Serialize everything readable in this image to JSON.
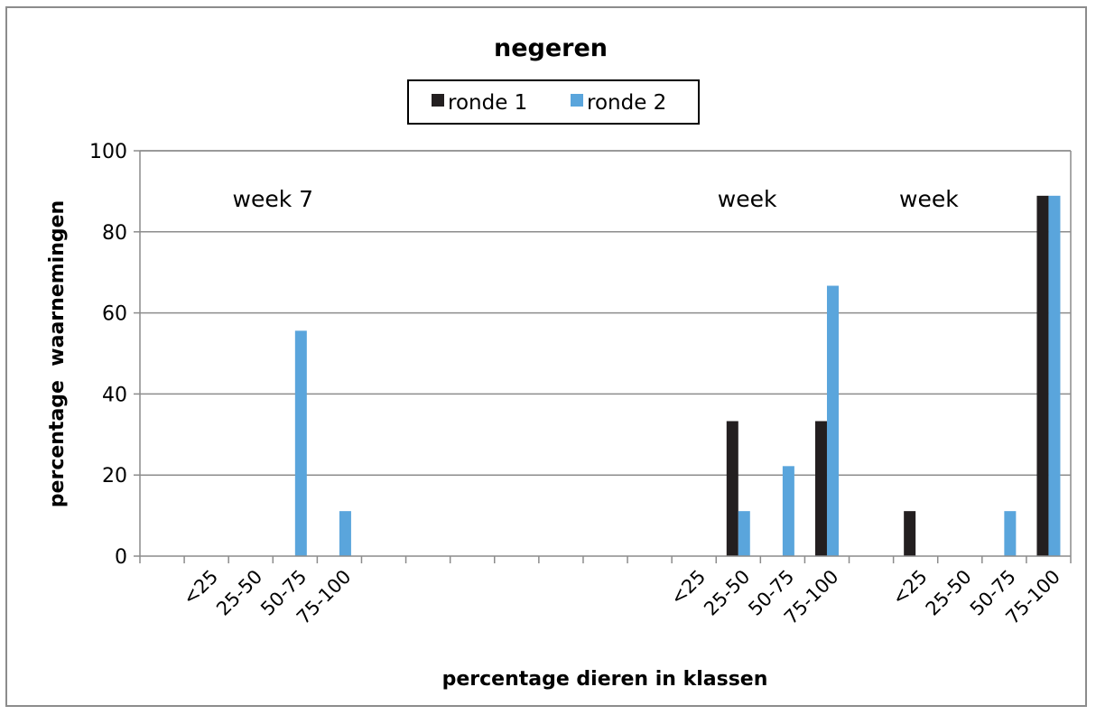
{
  "chart_data": {
    "type": "bar",
    "title": "negeren",
    "xlabel": "percentage dieren in klassen",
    "ylabel": "percentage  waarnemingen",
    "ylim": [
      0,
      100
    ],
    "yticks": [
      0,
      20,
      40,
      60,
      80,
      100
    ],
    "grid": true,
    "legend_position": "top-center",
    "categories": [
      "",
      "<25",
      "25-50",
      "50-75",
      "75-100",
      "",
      "",
      "",
      "",
      "",
      "",
      "",
      "<25",
      "25-50",
      "50-75",
      "75-100",
      "",
      "<25",
      "25-50",
      "50-75",
      "75-100"
    ],
    "series": [
      {
        "name": "ronde 1",
        "color": "#231f20",
        "values": [
          null,
          null,
          null,
          null,
          null,
          null,
          null,
          null,
          null,
          null,
          null,
          null,
          null,
          33.3,
          null,
          33.3,
          null,
          11.1,
          null,
          null,
          88.9
        ]
      },
      {
        "name": "ronde 2",
        "color": "#5aa5dc",
        "values": [
          null,
          null,
          null,
          55.6,
          11.1,
          null,
          null,
          null,
          null,
          null,
          null,
          null,
          null,
          11.1,
          22.2,
          66.7,
          null,
          null,
          null,
          11.1,
          88.9
        ]
      }
    ],
    "annotations": [
      {
        "text": "week 7",
        "category_index": 3
      },
      {
        "text": "week",
        "category_index": 13.7
      },
      {
        "text": "week",
        "category_index": 17.8
      }
    ]
  }
}
